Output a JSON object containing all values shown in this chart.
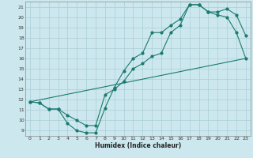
{
  "title": "",
  "xlabel": "Humidex (Indice chaleur)",
  "ylabel": "",
  "background_color": "#cce8ee",
  "grid_color": "#aacdd6",
  "line_color": "#1a7a6e",
  "xlim": [
    -0.5,
    23.5
  ],
  "ylim": [
    8.5,
    21.5
  ],
  "xticks": [
    0,
    1,
    2,
    3,
    4,
    5,
    6,
    7,
    8,
    9,
    10,
    11,
    12,
    13,
    14,
    15,
    16,
    17,
    18,
    19,
    20,
    21,
    22,
    23
  ],
  "yticks": [
    9,
    10,
    11,
    12,
    13,
    14,
    15,
    16,
    17,
    18,
    19,
    20,
    21
  ],
  "series1_x": [
    0,
    1,
    2,
    3,
    4,
    5,
    6,
    7,
    8,
    9,
    10,
    11,
    12,
    13,
    14,
    15,
    16,
    17,
    18,
    19,
    20,
    21,
    22,
    23
  ],
  "series1_y": [
    11.8,
    11.7,
    11.1,
    11.1,
    9.7,
    9.0,
    8.8,
    8.8,
    11.2,
    13.2,
    14.8,
    16.0,
    16.5,
    18.5,
    18.5,
    19.2,
    19.8,
    21.2,
    21.2,
    20.5,
    20.2,
    20.0,
    18.5,
    16.0
  ],
  "series2_x": [
    0,
    1,
    2,
    3,
    4,
    5,
    6,
    7,
    8,
    9,
    10,
    11,
    12,
    13,
    14,
    15,
    16,
    17,
    18,
    19,
    20,
    21,
    22,
    23
  ],
  "series2_y": [
    11.8,
    11.7,
    11.1,
    11.1,
    10.5,
    10.0,
    9.5,
    9.5,
    12.5,
    13.0,
    13.8,
    15.0,
    15.5,
    16.2,
    16.5,
    18.5,
    19.2,
    21.2,
    21.2,
    20.5,
    20.5,
    20.8,
    20.2,
    18.2
  ],
  "series3_x": [
    0,
    23
  ],
  "series3_y": [
    11.8,
    16.0
  ]
}
